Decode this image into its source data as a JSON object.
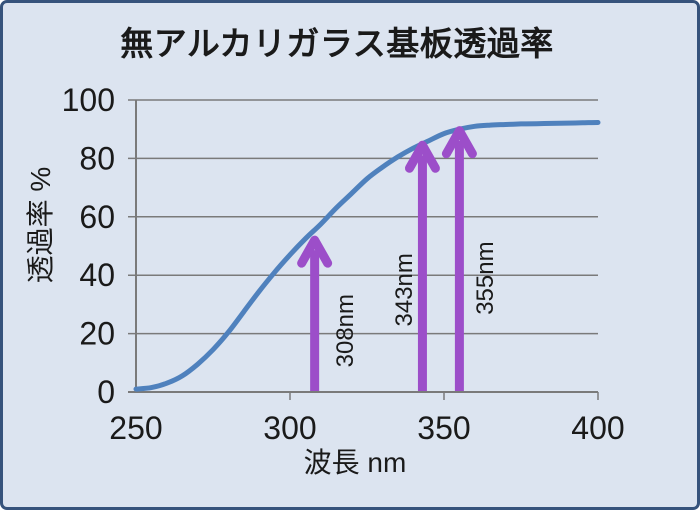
{
  "colors": {
    "background": "#dce4f0",
    "frame_border": "#36537c",
    "gridline": "#7a7a7a",
    "curve": "#4f81bd",
    "arrow": "#9c4ec9",
    "text": "#1a1a1a"
  },
  "chart_data": {
    "type": "line",
    "title": "無アルカリガラス基板透過率",
    "xlabel": "波長 nm",
    "ylabel": "透過率 %",
    "xlim": [
      250,
      400
    ],
    "ylim": [
      0,
      100
    ],
    "xticks": [
      250,
      300,
      350,
      400
    ],
    "yticks": [
      0,
      20,
      40,
      60,
      80,
      100
    ],
    "grid": "horizontal",
    "legend": "none",
    "series": [
      {
        "name": "無アルカリガラス基板透過率",
        "color": "#4f81bd",
        "x": [
          250,
          255,
          260,
          265,
          270,
          275,
          280,
          285,
          290,
          295,
          300,
          305,
          310,
          315,
          320,
          325,
          330,
          335,
          340,
          345,
          350,
          355,
          360,
          365,
          370,
          375,
          380,
          385,
          390,
          395,
          400
        ],
        "y": [
          1,
          1.5,
          3,
          5.5,
          9.5,
          14.5,
          20.5,
          27.5,
          34.5,
          41,
          47,
          52.5,
          57.5,
          63,
          68,
          73,
          77,
          80.5,
          83.5,
          86,
          88.5,
          90,
          91,
          91.4,
          91.6,
          91.8,
          91.9,
          92,
          92.1,
          92.2,
          92.3
        ]
      }
    ],
    "annotations": [
      {
        "label": "308nm",
        "x_nm": 308,
        "arrow_base_pct": 0,
        "arrow_tip_pct": 52,
        "label_dx": 30,
        "label_center_pct": 21,
        "color": "#9c4ec9"
      },
      {
        "label": "343nm",
        "x_nm": 343,
        "arrow_base_pct": 0,
        "arrow_tip_pct": 84.5,
        "label_dx": -19,
        "label_center_pct": 35,
        "color": "#9c4ec9"
      },
      {
        "label": "355nm",
        "x_nm": 355,
        "arrow_base_pct": 0,
        "arrow_tip_pct": 89.5,
        "label_dx": 25,
        "label_center_pct": 39,
        "color": "#9c4ec9"
      }
    ]
  }
}
